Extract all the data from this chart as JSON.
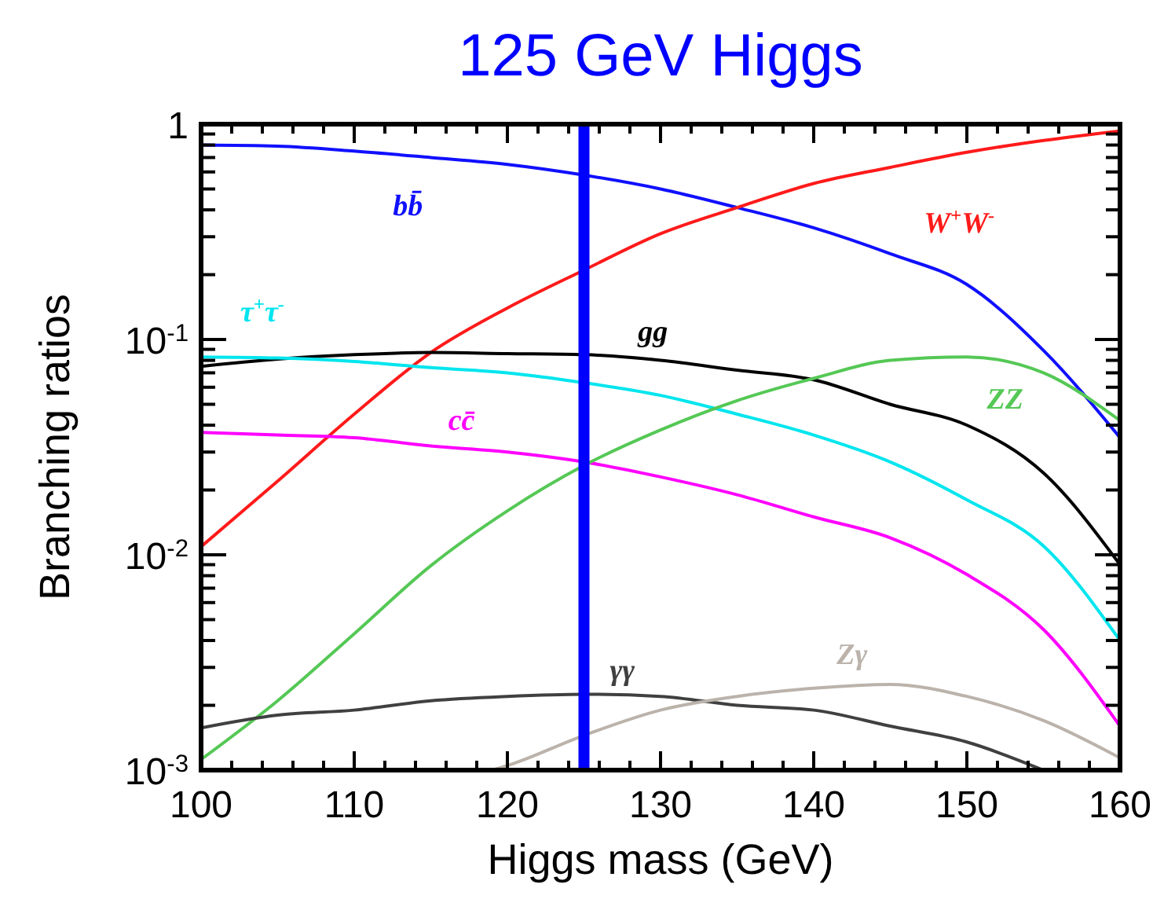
{
  "chart_data": {
    "type": "line",
    "title": "125 GeV Higgs",
    "xlabel": "Higgs mass (GeV)",
    "ylabel": "Branching ratios",
    "log": "y",
    "legend": false,
    "grid": false,
    "marker": "none",
    "line_style": "solid",
    "x": [
      100,
      105,
      110,
      115,
      120,
      125,
      130,
      135,
      140,
      145,
      150,
      155,
      160
    ],
    "xlim": [
      100,
      160
    ],
    "ylim": [
      0.001,
      1
    ],
    "xticks": [
      100,
      {
        "value": 102,
        "label": null
      },
      {
        "value": 104,
        "label": null
      },
      {
        "value": 106,
        "label": null
      },
      {
        "value": 108,
        "label": null
      },
      110,
      {
        "value": 112,
        "label": null
      },
      {
        "value": 114,
        "label": null
      },
      {
        "value": 116,
        "label": null
      },
      {
        "value": 118,
        "label": null
      },
      120,
      {
        "value": 122,
        "label": null
      },
      {
        "value": 124,
        "label": null
      },
      {
        "value": 126,
        "label": null
      },
      {
        "value": 128,
        "label": null
      },
      130,
      {
        "value": 132,
        "label": null
      },
      {
        "value": 134,
        "label": null
      },
      {
        "value": 136,
        "label": null
      },
      {
        "value": 138,
        "label": null
      },
      140,
      {
        "value": 142,
        "label": null
      },
      {
        "value": 144,
        "label": null
      },
      {
        "value": 146,
        "label": null
      },
      {
        "value": 148,
        "label": null
      },
      150,
      {
        "value": 152,
        "label": null
      },
      {
        "value": 154,
        "label": null
      },
      {
        "value": 156,
        "label": null
      },
      {
        "value": 158,
        "label": null
      },
      160
    ],
    "yticks": [
      {
        "value": 0.001,
        "label": "10$^{-3}$"
      },
      {
        "value": 0.002,
        "label": null
      },
      {
        "value": 0.003,
        "label": null
      },
      {
        "value": 0.004,
        "label": null
      },
      {
        "value": 0.005,
        "label": null
      },
      {
        "value": 0.006,
        "label": null
      },
      {
        "value": 0.007,
        "label": null
      },
      {
        "value": 0.008,
        "label": null
      },
      {
        "value": 0.009,
        "label": null
      },
      {
        "value": 0.01,
        "label": "10$^{-2}$"
      },
      {
        "value": 0.02,
        "label": null
      },
      {
        "value": 0.03,
        "label": null
      },
      {
        "value": 0.04,
        "label": null
      },
      {
        "value": 0.05,
        "label": null
      },
      {
        "value": 0.06,
        "label": null
      },
      {
        "value": 0.07,
        "label": null
      },
      {
        "value": 0.08,
        "label": null
      },
      {
        "value": 0.09,
        "label": null
      },
      {
        "value": 0.1,
        "label": "10$^{-1}$"
      },
      {
        "value": 0.2,
        "label": null
      },
      {
        "value": 0.3,
        "label": null
      },
      {
        "value": 0.4,
        "label": null
      },
      {
        "value": 0.5,
        "label": null
      },
      {
        "value": 0.6,
        "label": null
      },
      {
        "value": 0.7,
        "label": null
      },
      {
        "value": 0.8,
        "label": null
      },
      {
        "value": 0.9,
        "label": null
      },
      1
    ],
    "series": [
      {
        "name": "bb̄",
        "color": "#1010ff",
        "values": [
          0.8,
          0.79,
          0.75,
          0.7,
          0.65,
          0.58,
          0.5,
          0.41,
          0.33,
          0.25,
          0.18,
          0.089,
          0.035
        ]
      },
      {
        "name": "W$^{+}$W$^{-}$",
        "color": "#ff1a1a",
        "values": [
          0.0109,
          0.022,
          0.045,
          0.087,
          0.14,
          0.21,
          0.31,
          0.41,
          0.53,
          0.63,
          0.74,
          0.84,
          0.93
        ]
      },
      {
        "name": "gg",
        "color": "#000000",
        "values": [
          0.075,
          0.081,
          0.085,
          0.087,
          0.086,
          0.085,
          0.08,
          0.072,
          0.065,
          0.05,
          0.04,
          0.024,
          0.009
        ]
      },
      {
        "name": "τ$^{+}$τ$^{-}$",
        "color": "#00e5ee",
        "values": [
          0.083,
          0.082,
          0.079,
          0.074,
          0.07,
          0.063,
          0.055,
          0.045,
          0.036,
          0.027,
          0.018,
          0.011,
          0.004
        ]
      },
      {
        "name": "cc̄",
        "color": "#ff00ff",
        "values": [
          0.037,
          0.036,
          0.035,
          0.032,
          0.03,
          0.027,
          0.023,
          0.019,
          0.015,
          0.012,
          0.0081,
          0.0045,
          0.0016
        ]
      },
      {
        "name": "ZZ",
        "color": "#55c855",
        "values": [
          0.00112,
          0.0021,
          0.0043,
          0.0089,
          0.016,
          0.026,
          0.038,
          0.052,
          0.066,
          0.08,
          0.083,
          0.07,
          0.042
        ]
      },
      {
        "name": "γγ",
        "color": "#404040",
        "x": [
          100,
          105,
          110,
          115,
          120,
          125,
          130,
          135,
          140,
          145,
          150,
          155
        ],
        "values": [
          0.00157,
          0.0018,
          0.0019,
          0.0021,
          0.0022,
          0.00225,
          0.0022,
          0.002,
          0.0019,
          0.0016,
          0.00135,
          0.001
        ]
      },
      {
        "name": "Zγ",
        "color": "#bbb3ab",
        "x": [
          119,
          120,
          125,
          130,
          135,
          140,
          145,
          150,
          155,
          160
        ],
        "values": [
          0.001,
          0.00105,
          0.00145,
          0.0019,
          0.0022,
          0.0024,
          0.0025,
          0.0022,
          0.0017,
          0.00114
        ]
      }
    ],
    "ref_lines": [
      {
        "axis": "x",
        "value": 125,
        "color": "#0000ff"
      }
    ]
  }
}
